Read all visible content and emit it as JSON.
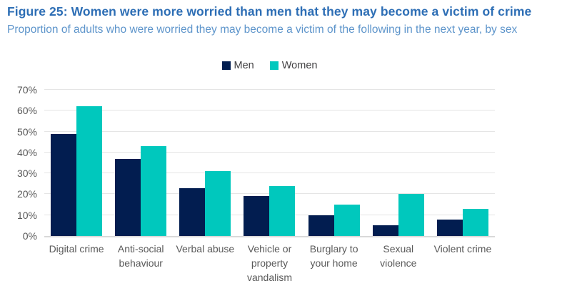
{
  "header": {
    "title": "Figure 25: Women were more worried than men that they may become a victim of crime",
    "subtitle": "Proportion of adults who were worried they may become a victim of the following in the next year, by sex"
  },
  "colors": {
    "title_blue": "#2d6eb5",
    "subtitle_blue": "#5e95cb",
    "legend_text": "#414042",
    "axis_text": "#595959",
    "gridline": "#e5e5e5",
    "axis_line": "#d9d9d9",
    "men": "#021d50",
    "women": "#00c8bd"
  },
  "chart_data": {
    "type": "bar",
    "title": "Figure 25: Women were more worried than men that they may become a victim of crime",
    "subtitle": "Proportion of adults who were worried they may become a victim of the following in the next year, by sex",
    "categories": [
      "Digital crime",
      "Anti-social behaviour",
      "Verbal abuse",
      "Vehicle or property vandalism",
      "Burglary to your home",
      "Sexual violence",
      "Violent crime"
    ],
    "series": [
      {
        "name": "Men",
        "color": "#021d50",
        "values": [
          49,
          37,
          23,
          19,
          10,
          5,
          8
        ]
      },
      {
        "name": "Women",
        "color": "#00c8bd",
        "values": [
          62,
          43,
          31,
          24,
          15,
          20,
          13
        ]
      }
    ],
    "xlabel": "",
    "ylabel": "",
    "ylim": [
      0,
      70
    ],
    "yticks": [
      0,
      10,
      20,
      30,
      40,
      50,
      60,
      70
    ],
    "ytick_suffix": "%",
    "grid": true,
    "legend_position": "top-center"
  }
}
